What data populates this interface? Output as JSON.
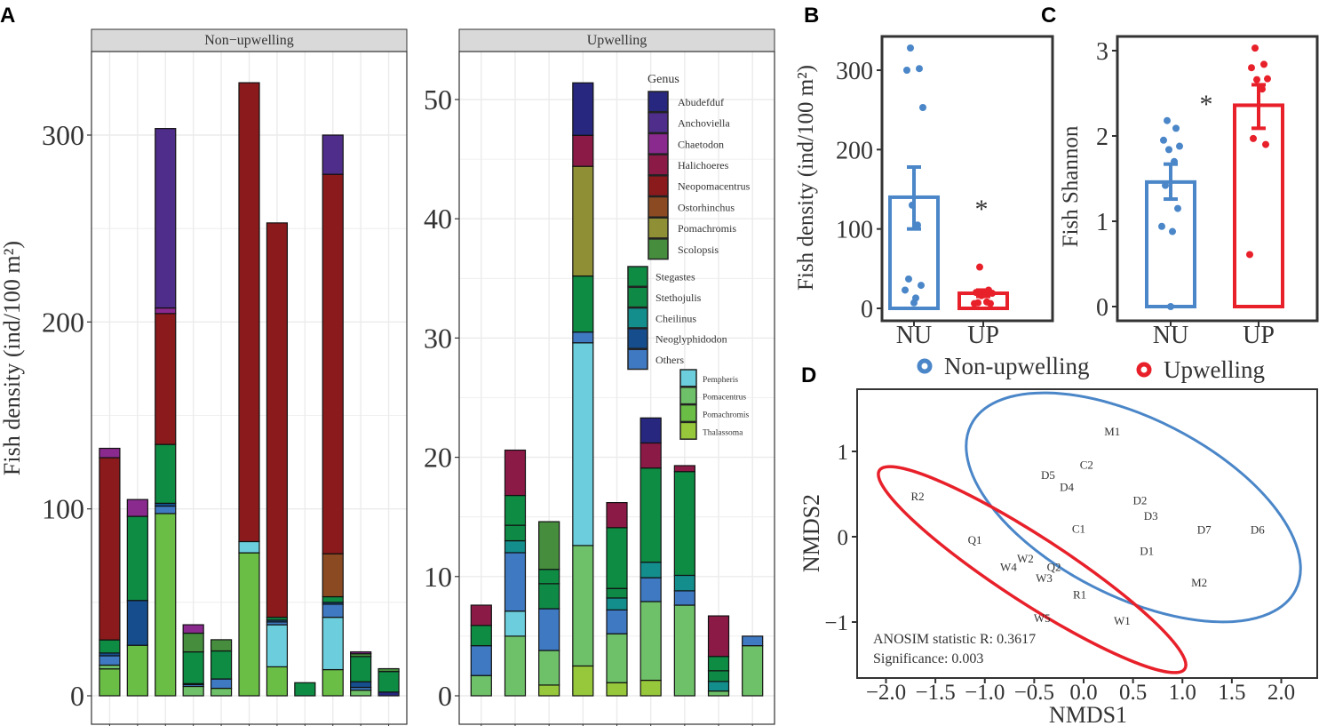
{
  "panel_labels": {
    "a": "A",
    "b": "B",
    "c": "C",
    "d": "D"
  },
  "genus_colors": {
    "Abudefduf": "#27277f",
    "Anchoviella": "#4f2d8a",
    "Chaetodon": "#8a2a8e",
    "Halichoeres": "#8c1a47",
    "Neopomacentrus": "#8b1a1c",
    "Ostorhinchus": "#8c4a22",
    "Pomachromis_a": "#8f8f35",
    "Scolopsis": "#468e3e",
    "Stegastes": "#0e8c44",
    "Stethojulis": "#0f8a46",
    "Cheilinus": "#138e8c",
    "Neoglyphidodon": "#154d8d",
    "Others": "#3f79c1",
    "Pempheris": "#6ccedc",
    "Pomacentrus": "#6fc169",
    "Pomachromis_b": "#6abd45",
    "Thalassoma": "#97c73a"
  },
  "colors": {
    "nu": "#4a86c8",
    "up": "#e8202a"
  },
  "chart_data": [
    {
      "id": "A",
      "type": "bar",
      "stacked": true,
      "ylabel": "Fish density (ind/100 m²)",
      "legend": {
        "title": "Genus",
        "groups": [
          [
            {
              "key": "Abudefduf",
              "label": "Abudefduf"
            },
            {
              "key": "Anchoviella",
              "label": "Anchoviella"
            },
            {
              "key": "Chaetodon",
              "label": "Chaetodon"
            },
            {
              "key": "Halichoeres",
              "label": "Halichoeres"
            },
            {
              "key": "Neopomacentrus",
              "label": "Neopomacentrus"
            },
            {
              "key": "Ostorhinchus",
              "label": "Ostorhinchus"
            },
            {
              "key": "Pomachromis_a",
              "label": "Pomachromis"
            },
            {
              "key": "Scolopsis",
              "label": "Scolopsis"
            }
          ],
          [
            {
              "key": "Stegastes",
              "label": "Stegastes"
            },
            {
              "key": "Stethojulis",
              "label": "Stethojulis"
            },
            {
              "key": "Cheilinus",
              "label": "Cheilinus"
            },
            {
              "key": "Neoglyphidodon",
              "label": "Neoglyphidodon"
            },
            {
              "key": "Others",
              "label": "Others"
            }
          ],
          [
            {
              "key": "Pempheris",
              "label": "Pempheris"
            },
            {
              "key": "Pomacentrus",
              "label": "Pomacentrus"
            },
            {
              "key": "Pomachromis_b",
              "label": "Pomachromis"
            },
            {
              "key": "Thalassoma",
              "label": "Thalassoma"
            }
          ]
        ]
      },
      "facets": [
        {
          "title": "Non−upwelling",
          "ylim": [
            0,
            340
          ],
          "yticks": [
            "0",
            "100",
            "200",
            "300"
          ],
          "ytick_values": [
            0,
            100,
            200,
            300
          ],
          "bars": [
            [
              [
                "Pomachromis_b",
                14.4
              ],
              [
                "Pomacentrus",
                2
              ],
              [
                "Others",
                5
              ],
              [
                "Neoglyphidodon",
                1.5
              ],
              [
                "Stegastes",
                7
              ],
              [
                "Neopomacentrus",
                97.5
              ],
              [
                "Chaetodon",
                5
              ]
            ],
            [
              [
                "Pomachromis_b",
                27
              ],
              [
                "Neoglyphidodon",
                24
              ],
              [
                "Stegastes",
                45
              ],
              [
                "Chaetodon",
                9
              ]
            ],
            [
              [
                "Pomachromis_b",
                97.5
              ],
              [
                "Others",
                4
              ],
              [
                "Neoglyphidodon",
                1.5
              ],
              [
                "Stegastes",
                31.5
              ],
              [
                "Neopomacentrus",
                70
              ],
              [
                "Chaetodon",
                3
              ],
              [
                "Anchoviella",
                96
              ]
            ],
            [
              [
                "Pomacentrus",
                5
              ],
              [
                "Others",
                1
              ],
              [
                "Neoglyphidodon",
                0.5
              ],
              [
                "Stegastes",
                17
              ],
              [
                "Scolopsis",
                10
              ],
              [
                "Chaetodon",
                4.5
              ]
            ],
            [
              [
                "Pomacentrus",
                4
              ],
              [
                "Others",
                5
              ],
              [
                "Stegastes",
                15
              ],
              [
                "Scolopsis",
                6
              ]
            ],
            [
              [
                "Pomachromis_b",
                76.5
              ],
              [
                "Pempheris",
                6
              ],
              [
                "Neopomacentrus",
                245.5
              ]
            ],
            [
              [
                "Pomachromis_b",
                15.5
              ],
              [
                "Pempheris",
                22.5
              ],
              [
                "Others",
                1.5
              ],
              [
                "Neoglyphidodon",
                1
              ],
              [
                "Stegastes",
                1.5
              ],
              [
                "Neopomacentrus",
                211
              ]
            ],
            [
              [
                "Stegastes",
                7
              ]
            ],
            [
              [
                "Pomachromis_b",
                14
              ],
              [
                "Pempheris",
                28
              ],
              [
                "Others",
                7
              ],
              [
                "Neoglyphidodon",
                1
              ],
              [
                "Stegastes",
                3
              ],
              [
                "Ostorhinchus",
                23
              ],
              [
                "Neopomacentrus",
                203
              ],
              [
                "Anchoviella",
                21
              ]
            ],
            [
              [
                "Pomacentrus",
                3
              ],
              [
                "Others",
                1.5
              ],
              [
                "Neoglyphidodon",
                3
              ],
              [
                "Stegastes",
                13.5
              ],
              [
                "Scolopsis",
                1.5
              ],
              [
                "Chaetodon",
                1
              ]
            ],
            [
              [
                "Abudefduf",
                2
              ],
              [
                "Stegastes",
                11
              ],
              [
                "Scolopsis",
                1.5
              ]
            ]
          ]
        },
        {
          "title": "Upwelling",
          "ylim": [
            0,
            55
          ],
          "yticks": [
            "0",
            "10",
            "20",
            "30",
            "40",
            "50"
          ],
          "ytick_values": [
            0,
            10,
            20,
            30,
            40,
            50
          ],
          "bars": [
            [
              [
                "Pomacentrus",
                1.7
              ],
              [
                "Others",
                2.5
              ],
              [
                "Stegastes",
                1.7
              ],
              [
                "Halichoeres",
                1.7
              ]
            ],
            [
              [
                "Pomacentrus",
                5
              ],
              [
                "Pempheris",
                2.1
              ],
              [
                "Others",
                4.9
              ],
              [
                "Cheilinus",
                1
              ],
              [
                "Stethojulis",
                1.3
              ],
              [
                "Stegastes",
                2.5
              ],
              [
                "Halichoeres",
                3.8
              ]
            ],
            [
              [
                "Thalassoma",
                0.9
              ],
              [
                "Pomacentrus",
                2.9
              ],
              [
                "Others",
                3.5
              ],
              [
                "Stethojulis",
                2.1
              ],
              [
                "Stegastes",
                1.2
              ],
              [
                "Scolopsis",
                4.0
              ]
            ],
            [
              [
                "Thalassoma",
                2.5
              ],
              [
                "Pomacentrus",
                10.1
              ],
              [
                "Pempheris",
                17
              ],
              [
                "Others",
                0.9
              ],
              [
                "Stegastes",
                4.7
              ],
              [
                "Pomachromis_a",
                9.2
              ],
              [
                "Halichoeres",
                2.6
              ],
              [
                "Abudefduf",
                4.4
              ]
            ],
            [
              [
                "Thalassoma",
                1.1
              ],
              [
                "Pomacentrus",
                4.1
              ],
              [
                "Others",
                2
              ],
              [
                "Cheilinus",
                1
              ],
              [
                "Stethojulis",
                0.8
              ],
              [
                "Stegastes",
                5.1
              ],
              [
                "Halichoeres",
                2.1
              ]
            ],
            [
              [
                "Thalassoma",
                1.3
              ],
              [
                "Pomacentrus",
                6.6
              ],
              [
                "Others",
                2
              ],
              [
                "Cheilinus",
                1.3
              ],
              [
                "Stegastes",
                7.9
              ],
              [
                "Halichoeres",
                2.1
              ],
              [
                "Abudefduf",
                2.1
              ]
            ],
            [
              [
                "Pomacentrus",
                7.6
              ],
              [
                "Others",
                1.2
              ],
              [
                "Cheilinus",
                1.3
              ],
              [
                "Stegastes",
                8.7
              ],
              [
                "Halichoeres",
                0.5
              ]
            ],
            [
              [
                "Pomacentrus",
                0.4
              ],
              [
                "Cheilinus",
                0.8
              ],
              [
                "Stethojulis",
                0.9
              ],
              [
                "Stegastes",
                1.2
              ],
              [
                "Halichoeres",
                3.4
              ]
            ],
            [
              [
                "Pomacentrus",
                4.2
              ],
              [
                "Others",
                0.8
              ]
            ]
          ]
        }
      ]
    },
    {
      "id": "B",
      "type": "bar",
      "ylabel": "Fish density (ind/100 m²)",
      "categories": [
        "NU",
        "UP"
      ],
      "ylim": [
        -12,
        340
      ],
      "yticks": [
        "0",
        "100",
        "200",
        "300"
      ],
      "ytick_values": [
        0,
        100,
        200,
        300
      ],
      "means": [
        140,
        19
      ],
      "se_low": [
        100,
        15
      ],
      "se_high": [
        178,
        23
      ],
      "points": [
        [
          328,
          302,
          300,
          253,
          130,
          105,
          37,
          29,
          23,
          13,
          7
        ],
        [
          52,
          23,
          20,
          19,
          16,
          8,
          7,
          6,
          6
        ]
      ],
      "annotation": "*"
    },
    {
      "id": "C",
      "type": "bar",
      "ylabel": "Fish Shannon",
      "categories": [
        "NU",
        "UP"
      ],
      "ylim": [
        -0.14,
        3.2
      ],
      "yticks": [
        "0",
        "1",
        "2",
        "3"
      ],
      "ytick_values": [
        0,
        1,
        2,
        3
      ],
      "means": [
        1.46,
        2.36
      ],
      "se_low": [
        1.26,
        2.09
      ],
      "se_high": [
        1.67,
        2.6
      ],
      "points": [
        [
          2.18,
          2.09,
          1.95,
          1.88,
          1.84,
          1.7,
          1.42,
          1.15,
          0.94,
          0.88,
          0
        ],
        [
          3.03,
          2.84,
          2.8,
          2.67,
          2.66,
          2.55,
          1.97,
          1.9,
          0.61
        ]
      ],
      "annotation": "*"
    },
    {
      "id": "D",
      "type": "scatter",
      "xlabel": "NMDS1",
      "ylabel": "NMDS2",
      "xlim": [
        -2.3,
        2.4
      ],
      "ylim": [
        -1.6,
        1.65
      ],
      "xticks": [
        "−2.0",
        "−1.5",
        "−1.0",
        "−0.5",
        "0.0",
        "0.5",
        "1.0",
        "1.5",
        "2.0"
      ],
      "xtick_values": [
        -2,
        -1.5,
        -1,
        -0.5,
        0,
        0.5,
        1,
        1.5,
        2
      ],
      "yticks": [
        "−1",
        "0",
        "1"
      ],
      "ytick_values": [
        -1,
        0,
        1
      ],
      "legend": [
        "Non-upwelling",
        "Upwelling"
      ],
      "points": [
        {
          "label": "M1",
          "x": 0.29,
          "y": 1.24,
          "group": 0
        },
        {
          "label": "C2",
          "x": 0.03,
          "y": 0.85,
          "group": 0
        },
        {
          "label": "D5",
          "x": -0.36,
          "y": 0.73,
          "group": 0
        },
        {
          "label": "D4",
          "x": -0.17,
          "y": 0.59,
          "group": 0
        },
        {
          "label": "D2",
          "x": 0.57,
          "y": 0.43,
          "group": 0
        },
        {
          "label": "D3",
          "x": 0.68,
          "y": 0.25,
          "group": 0
        },
        {
          "label": "C1",
          "x": -0.05,
          "y": 0.1,
          "group": 0
        },
        {
          "label": "D7",
          "x": 1.22,
          "y": 0.09,
          "group": 0
        },
        {
          "label": "D6",
          "x": 1.76,
          "y": 0.09,
          "group": 0
        },
        {
          "label": "D1",
          "x": 0.64,
          "y": -0.16,
          "group": 0
        },
        {
          "label": "M2",
          "x": 1.17,
          "y": -0.53,
          "group": 0
        },
        {
          "label": "R2",
          "x": -1.68,
          "y": 0.48,
          "group": 1
        },
        {
          "label": "Q1",
          "x": -1.1,
          "y": -0.03,
          "group": 1
        },
        {
          "label": "W2",
          "x": -0.59,
          "y": -0.25,
          "group": 1
        },
        {
          "label": "W4",
          "x": -0.76,
          "y": -0.35,
          "group": 1
        },
        {
          "label": "Q2",
          "x": -0.3,
          "y": -0.35,
          "group": 1
        },
        {
          "label": "W3",
          "x": -0.4,
          "y": -0.48,
          "group": 1
        },
        {
          "label": "R1",
          "x": -0.04,
          "y": -0.67,
          "group": 1
        },
        {
          "label": "W5",
          "x": -0.42,
          "y": -0.95,
          "group": 1
        },
        {
          "label": "W1",
          "x": 0.39,
          "y": -0.98,
          "group": 1
        }
      ],
      "annotations": [
        "ANOSIM statistic R: 0.3617",
        "Significance: 0.003"
      ]
    }
  ]
}
